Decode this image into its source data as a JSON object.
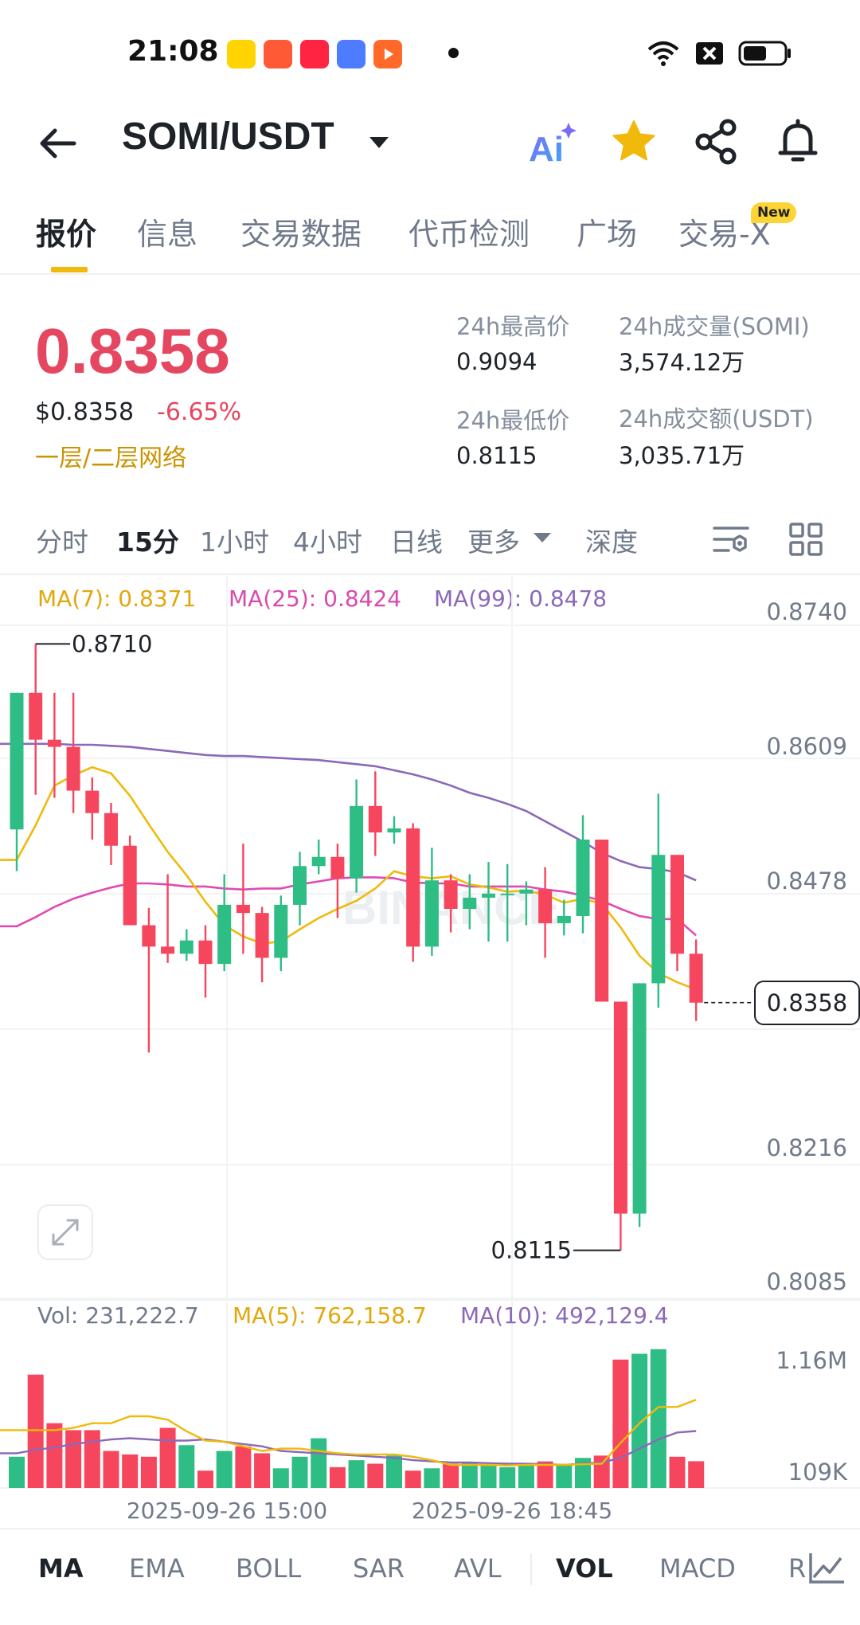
{
  "status_bar": {
    "time": "21:08"
  },
  "header": {
    "pair": "SOMI/USDT",
    "ai_label": "Ai"
  },
  "tabs": [
    {
      "label": "报价",
      "active": true
    },
    {
      "label": "信息"
    },
    {
      "label": "交易数据"
    },
    {
      "label": "代币检测"
    },
    {
      "label": "广场"
    },
    {
      "label": "交易-X"
    }
  ],
  "new_badge": "New",
  "price": {
    "last": "0.8358",
    "usd": "$0.8358",
    "change": "-6.65%",
    "network": "一层/二层网络",
    "down_color": "#e64760"
  },
  "stats": {
    "high_label": "24h最高价",
    "high": "0.9094",
    "vol_label": "24h成交量(SOMI)",
    "vol": "3,574.12万",
    "low_label": "24h最低价",
    "low": "0.8115",
    "amt_label": "24h成交额(USDT)",
    "amt": "3,035.71万"
  },
  "intervals": [
    {
      "label": "分时"
    },
    {
      "label": "15分",
      "active": true
    },
    {
      "label": "1小时"
    },
    {
      "label": "4小时"
    },
    {
      "label": "日线"
    },
    {
      "label": "更多"
    },
    {
      "label": "深度"
    }
  ],
  "ma_legend": {
    "ma7": "MA(7): 0.8371",
    "ma25": "MA(25): 0.8424",
    "ma99": "MA(99): 0.8478"
  },
  "vol_legend": {
    "vol": "Vol: 231,222.7",
    "ma5": "MA(5): 762,158.7",
    "ma10": "MA(10): 492,129.4"
  },
  "watermark": "BINANCE",
  "chart_data": {
    "type": "candlestick",
    "interval": "15分",
    "price_axis_ticks": [
      "0.8740",
      "0.8609",
      "0.8478",
      "0.8216",
      "0.8085"
    ],
    "ylim": [
      0.8085,
      0.874
    ],
    "high_marker": "0.8710",
    "low_marker": "0.8115",
    "last_price": "0.8358",
    "volume_axis_ticks": [
      "1.16M",
      "109K"
    ],
    "time_labels": [
      "2025-09-26 15:00",
      "2025-09-26 18:45"
    ],
    "candles": [
      {
        "o": 0.8528,
        "h": 0.8662,
        "l": 0.8487,
        "c": 0.8662
      },
      {
        "o": 0.8662,
        "h": 0.871,
        "l": 0.8562,
        "c": 0.8616
      },
      {
        "o": 0.8616,
        "h": 0.8662,
        "l": 0.8559,
        "c": 0.8609
      },
      {
        "o": 0.8609,
        "h": 0.8662,
        "l": 0.8544,
        "c": 0.8566
      },
      {
        "o": 0.8566,
        "h": 0.8579,
        "l": 0.8518,
        "c": 0.8544
      },
      {
        "o": 0.8544,
        "h": 0.8554,
        "l": 0.8493,
        "c": 0.8512
      },
      {
        "o": 0.8512,
        "h": 0.8522,
        "l": 0.8434,
        "c": 0.8434
      },
      {
        "o": 0.8434,
        "h": 0.8451,
        "l": 0.8309,
        "c": 0.8413
      },
      {
        "o": 0.8413,
        "h": 0.8484,
        "l": 0.8397,
        "c": 0.8406
      },
      {
        "o": 0.8406,
        "h": 0.843,
        "l": 0.8399,
        "c": 0.8419
      },
      {
        "o": 0.8419,
        "h": 0.8434,
        "l": 0.8363,
        "c": 0.8396
      },
      {
        "o": 0.8396,
        "h": 0.8484,
        "l": 0.8389,
        "c": 0.8454
      },
      {
        "o": 0.8454,
        "h": 0.8514,
        "l": 0.8406,
        "c": 0.8446
      },
      {
        "o": 0.8446,
        "h": 0.8452,
        "l": 0.8378,
        "c": 0.8402
      },
      {
        "o": 0.8402,
        "h": 0.8463,
        "l": 0.8389,
        "c": 0.8454
      },
      {
        "o": 0.8454,
        "h": 0.8506,
        "l": 0.8434,
        "c": 0.8492
      },
      {
        "o": 0.8492,
        "h": 0.8518,
        "l": 0.8484,
        "c": 0.8501
      },
      {
        "o": 0.8501,
        "h": 0.8514,
        "l": 0.8441,
        "c": 0.848
      },
      {
        "o": 0.848,
        "h": 0.8577,
        "l": 0.8466,
        "c": 0.8551
      },
      {
        "o": 0.8551,
        "h": 0.8585,
        "l": 0.8502,
        "c": 0.8525
      },
      {
        "o": 0.8525,
        "h": 0.8541,
        "l": 0.8514,
        "c": 0.8529
      },
      {
        "o": 0.8529,
        "h": 0.8534,
        "l": 0.8398,
        "c": 0.8413
      },
      {
        "o": 0.8413,
        "h": 0.851,
        "l": 0.8404,
        "c": 0.8478
      },
      {
        "o": 0.8478,
        "h": 0.8484,
        "l": 0.8427,
        "c": 0.845
      },
      {
        "o": 0.845,
        "h": 0.8484,
        "l": 0.843,
        "c": 0.8461
      },
      {
        "o": 0.8461,
        "h": 0.8496,
        "l": 0.8418,
        "c": 0.8465
      },
      {
        "o": 0.8465,
        "h": 0.8494,
        "l": 0.8418,
        "c": 0.8465
      },
      {
        "o": 0.8465,
        "h": 0.8477,
        "l": 0.8434,
        "c": 0.8469
      },
      {
        "o": 0.8469,
        "h": 0.8491,
        "l": 0.8402,
        "c": 0.8436
      },
      {
        "o": 0.8436,
        "h": 0.8459,
        "l": 0.8424,
        "c": 0.8443
      },
      {
        "o": 0.8443,
        "h": 0.8542,
        "l": 0.8426,
        "c": 0.8518
      },
      {
        "o": 0.8518,
        "h": 0.8518,
        "l": 0.8359,
        "c": 0.8359
      },
      {
        "o": 0.8359,
        "h": 0.8359,
        "l": 0.8115,
        "c": 0.8151
      },
      {
        "o": 0.8151,
        "h": 0.8377,
        "l": 0.8138,
        "c": 0.8377
      },
      {
        "o": 0.8377,
        "h": 0.8563,
        "l": 0.8353,
        "c": 0.8503
      },
      {
        "o": 0.8503,
        "h": 0.8503,
        "l": 0.8389,
        "c": 0.8406
      },
      {
        "o": 0.8406,
        "h": 0.842,
        "l": 0.834,
        "c": 0.8358
      }
    ],
    "ma7": [
      0.8498,
      0.8532,
      0.8571,
      0.8581,
      0.8589,
      0.8583,
      0.8561,
      0.8533,
      0.8506,
      0.8483,
      0.8457,
      0.8434,
      0.8423,
      0.8416,
      0.8418,
      0.843,
      0.8441,
      0.845,
      0.8458,
      0.847,
      0.8487,
      0.8482,
      0.848,
      0.8482,
      0.8474,
      0.8471,
      0.8467,
      0.8468,
      0.8464,
      0.8456,
      0.846,
      0.8455,
      0.8432,
      0.8404,
      0.8387,
      0.8378,
      0.8371
    ],
    "ma25": [
      0.8433,
      0.8442,
      0.8452,
      0.846,
      0.8466,
      0.8471,
      0.8475,
      0.8475,
      0.8474,
      0.8472,
      0.8472,
      0.847,
      0.8469,
      0.847,
      0.847,
      0.8474,
      0.8477,
      0.848,
      0.8481,
      0.8481,
      0.848,
      0.8476,
      0.8475,
      0.8475,
      0.8472,
      0.8472,
      0.8472,
      0.8472,
      0.8469,
      0.8467,
      0.8463,
      0.8458,
      0.845,
      0.8443,
      0.844,
      0.844,
      0.8424
    ],
    "ma99": [
      0.8612,
      0.8612,
      0.8612,
      0.8611,
      0.8611,
      0.861,
      0.8609,
      0.8607,
      0.8605,
      0.8603,
      0.8601,
      0.86,
      0.86,
      0.8599,
      0.8598,
      0.8597,
      0.8596,
      0.8594,
      0.8592,
      0.859,
      0.8586,
      0.8582,
      0.8577,
      0.8571,
      0.8564,
      0.8559,
      0.8553,
      0.8546,
      0.8536,
      0.8526,
      0.8516,
      0.8505,
      0.8497,
      0.8491,
      0.8489,
      0.8486,
      0.8478
    ],
    "volume": [
      270000,
      980000,
      560000,
      500000,
      500000,
      320000,
      290000,
      270000,
      520000,
      370000,
      150000,
      320000,
      360000,
      300000,
      170000,
      270000,
      430000,
      180000,
      240000,
      210000,
      280000,
      150000,
      170000,
      210000,
      220000,
      200000,
      180000,
      200000,
      230000,
      200000,
      260000,
      280000,
      1110000,
      1160000,
      1200000,
      270000,
      231223
    ],
    "vol_ma5": [
      500000,
      500000,
      500000,
      520000,
      560000,
      560000,
      620000,
      620000,
      590000,
      490000,
      410000,
      400000,
      360000,
      320000,
      340000,
      340000,
      320000,
      300000,
      290000,
      290000,
      290000,
      270000,
      240000,
      200000,
      200000,
      200000,
      195000,
      200000,
      200000,
      200000,
      205000,
      210000,
      390000,
      560000,
      700000,
      700000,
      762159
    ],
    "vol_ma10": [
      300000,
      330000,
      350000,
      380000,
      400000,
      420000,
      430000,
      420000,
      410000,
      410000,
      420000,
      400000,
      380000,
      360000,
      320000,
      310000,
      300000,
      290000,
      280000,
      270000,
      260000,
      240000,
      230000,
      220000,
      220000,
      215000,
      210000,
      210000,
      205000,
      200000,
      210000,
      220000,
      260000,
      340000,
      420000,
      480000,
      492129
    ]
  },
  "indicators": [
    {
      "label": "MA",
      "active": true
    },
    {
      "label": "EMA"
    },
    {
      "label": "BOLL"
    },
    {
      "label": "SAR"
    },
    {
      "label": "AVL"
    },
    {
      "label": "VOL",
      "active": true
    },
    {
      "label": "MACD"
    },
    {
      "label": "R"
    }
  ],
  "colors": {
    "up": "#2ebd85",
    "down": "#f6465d",
    "ma7": "#f0b90b",
    "ma25": "#e04ab4",
    "ma99": "#8b69b8",
    "brand": "#f0b90b"
  }
}
